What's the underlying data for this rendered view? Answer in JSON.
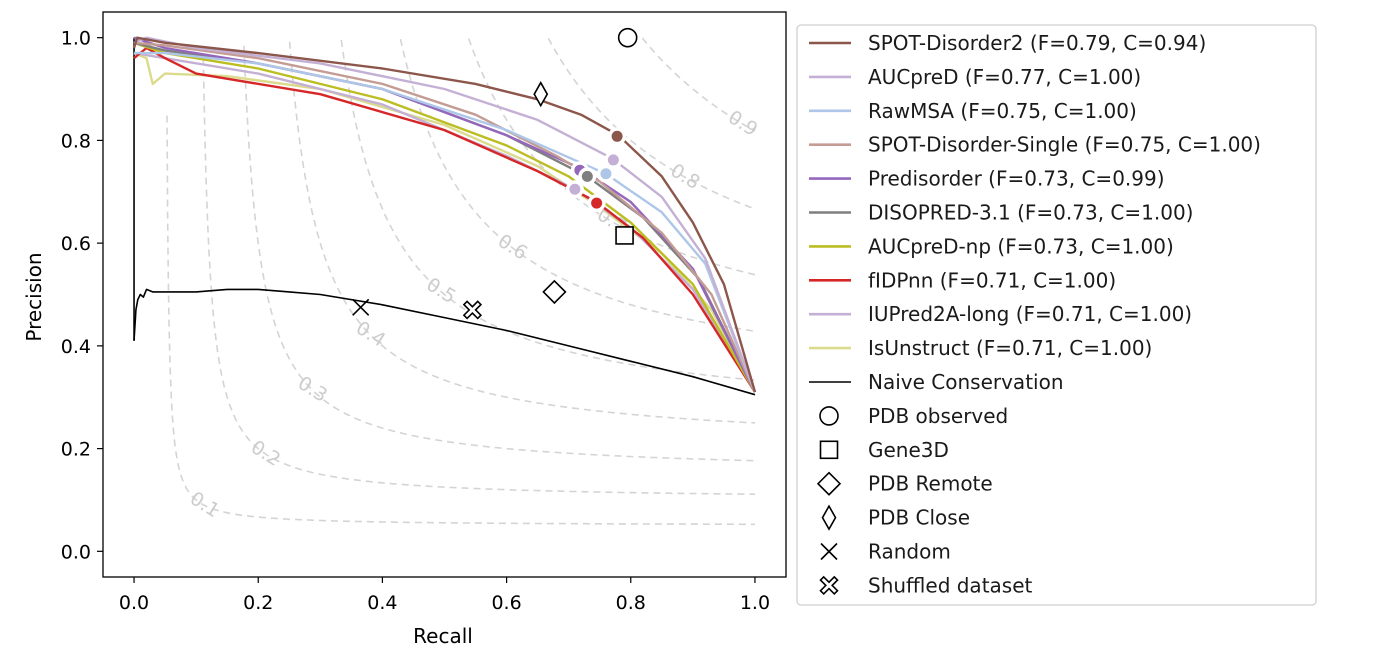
{
  "chart_data": {
    "type": "line",
    "title": "",
    "xlabel": "Recall",
    "ylabel": "Precision",
    "xlim": [
      -0.05,
      1.05
    ],
    "ylim": [
      -0.05,
      1.05
    ],
    "xticks": [
      {
        "value": 0.0,
        "label": "0.0"
      },
      {
        "value": 0.2,
        "label": "0.2"
      },
      {
        "value": 0.4,
        "label": "0.4"
      },
      {
        "value": 0.6,
        "label": "0.6"
      },
      {
        "value": 0.8,
        "label": "0.8"
      },
      {
        "value": 1.0,
        "label": "1.0"
      }
    ],
    "yticks": [
      {
        "value": 0.0,
        "label": "0.0"
      },
      {
        "value": 0.2,
        "label": "0.2"
      },
      {
        "value": 0.4,
        "label": "0.4"
      },
      {
        "value": 0.6,
        "label": "0.6"
      },
      {
        "value": 0.8,
        "label": "0.8"
      },
      {
        "value": 1.0,
        "label": "1.0"
      }
    ],
    "iso_f_contours": [
      {
        "f": 0.1,
        "label": "0.1",
        "label_at": [
          0.1,
          0.1
        ]
      },
      {
        "f": 0.2,
        "label": "0.2",
        "label_at": [
          0.2,
          0.2
        ]
      },
      {
        "f": 0.3,
        "label": "0.3",
        "label_at": [
          0.3,
          0.3
        ]
      },
      {
        "f": 0.4,
        "label": "0.4",
        "label_at": [
          0.4,
          0.4
        ]
      },
      {
        "f": 0.5,
        "label": "0.5",
        "label_at": [
          0.5,
          0.5
        ]
      },
      {
        "f": 0.6,
        "label": "0.6",
        "label_at": [
          0.6,
          0.6
        ]
      },
      {
        "f": 0.7,
        "label": "0.7",
        "label_at": [
          0.7,
          0.7
        ]
      },
      {
        "f": 0.8,
        "label": "0.8",
        "label_at": [
          0.8,
          0.8
        ]
      },
      {
        "f": 0.9,
        "label": "0.9",
        "label_at": [
          0.9,
          0.9
        ]
      }
    ],
    "series": [
      {
        "name": "SPOT-Disorder2 (F=0.79, C=0.94)",
        "color": "#8c564b",
        "points": [
          [
            0,
            0.98
          ],
          [
            0.005,
            1.0
          ],
          [
            0.05,
            0.99
          ],
          [
            0.2,
            0.97
          ],
          [
            0.4,
            0.94
          ],
          [
            0.55,
            0.91
          ],
          [
            0.65,
            0.88
          ],
          [
            0.72,
            0.85
          ],
          [
            0.78,
            0.81
          ],
          [
            0.85,
            0.73
          ],
          [
            0.9,
            0.64
          ],
          [
            0.95,
            0.52
          ],
          [
            1.0,
            0.31
          ]
        ],
        "marker": [
          0.778,
          0.808
        ]
      },
      {
        "name": "AUCpreD (F=0.77, C=1.00)",
        "color": "#c5b0d5",
        "points": [
          [
            0,
            0.99
          ],
          [
            0.02,
            1.0
          ],
          [
            0.1,
            0.98
          ],
          [
            0.3,
            0.95
          ],
          [
            0.5,
            0.9
          ],
          [
            0.65,
            0.84
          ],
          [
            0.77,
            0.765
          ],
          [
            0.85,
            0.69
          ],
          [
            0.92,
            0.57
          ],
          [
            1.0,
            0.31
          ]
        ],
        "marker": [
          0.772,
          0.762
        ]
      },
      {
        "name": "RawMSA (F=0.75, C=1.00)",
        "color": "#aec7e8",
        "points": [
          [
            0,
            0.97
          ],
          [
            0.05,
            0.97
          ],
          [
            0.2,
            0.95
          ],
          [
            0.4,
            0.9
          ],
          [
            0.6,
            0.82
          ],
          [
            0.76,
            0.735
          ],
          [
            0.85,
            0.66
          ],
          [
            0.92,
            0.56
          ],
          [
            1.0,
            0.31
          ]
        ],
        "marker": [
          0.76,
          0.735
        ]
      },
      {
        "name": "SPOT-Disorder-Single (F=0.75, C=1.00)",
        "color": "#c49c94",
        "points": [
          [
            0,
            0.99
          ],
          [
            0.05,
            0.985
          ],
          [
            0.2,
            0.96
          ],
          [
            0.4,
            0.91
          ],
          [
            0.55,
            0.85
          ],
          [
            0.68,
            0.77
          ],
          [
            0.75,
            0.72
          ],
          [
            0.85,
            0.62
          ],
          [
            0.93,
            0.5
          ],
          [
            1.0,
            0.31
          ]
        ],
        "marker": null
      },
      {
        "name": "Predisorder (F=0.73, C=0.99)",
        "color": "#9467bd",
        "points": [
          [
            0,
            1.0
          ],
          [
            0.05,
            0.98
          ],
          [
            0.2,
            0.95
          ],
          [
            0.4,
            0.9
          ],
          [
            0.6,
            0.81
          ],
          [
            0.72,
            0.745
          ],
          [
            0.8,
            0.68
          ],
          [
            0.9,
            0.55
          ],
          [
            1.0,
            0.31
          ]
        ],
        "marker": [
          0.718,
          0.742
        ]
      },
      {
        "name": "DISOPRED-3.1 (F=0.73, C=1.00)",
        "color": "#7f7f7f",
        "points": [
          [
            0,
            0.99
          ],
          [
            0.05,
            0.975
          ],
          [
            0.2,
            0.95
          ],
          [
            0.4,
            0.9
          ],
          [
            0.6,
            0.81
          ],
          [
            0.73,
            0.73
          ],
          [
            0.82,
            0.65
          ],
          [
            0.91,
            0.53
          ],
          [
            1.0,
            0.31
          ]
        ],
        "marker": [
          0.73,
          0.73
        ]
      },
      {
        "name": "AUCpreD-np (F=0.73, C=1.00)",
        "color": "#bcbd22",
        "points": [
          [
            0,
            0.99
          ],
          [
            0.05,
            0.97
          ],
          [
            0.2,
            0.94
          ],
          [
            0.4,
            0.88
          ],
          [
            0.6,
            0.79
          ],
          [
            0.7,
            0.73
          ],
          [
            0.8,
            0.64
          ],
          [
            0.9,
            0.52
          ],
          [
            1.0,
            0.31
          ]
        ],
        "marker": null
      },
      {
        "name": "fIDPnn (F=0.71, C=1.00)",
        "color": "#d62728",
        "points": [
          [
            0,
            0.96
          ],
          [
            0.02,
            0.98
          ],
          [
            0.05,
            0.96
          ],
          [
            0.1,
            0.93
          ],
          [
            0.3,
            0.89
          ],
          [
            0.5,
            0.82
          ],
          [
            0.65,
            0.74
          ],
          [
            0.745,
            0.68
          ],
          [
            0.82,
            0.61
          ],
          [
            0.9,
            0.5
          ],
          [
            1.0,
            0.31
          ]
        ],
        "marker": [
          0.745,
          0.678
        ]
      },
      {
        "name": "IUPred2A-long (F=0.71, C=1.00)",
        "color": "#c5b0d5",
        "points": [
          [
            0,
            0.97
          ],
          [
            0.05,
            0.96
          ],
          [
            0.2,
            0.93
          ],
          [
            0.4,
            0.87
          ],
          [
            0.6,
            0.77
          ],
          [
            0.71,
            0.705
          ],
          [
            0.8,
            0.63
          ],
          [
            0.9,
            0.51
          ],
          [
            1.0,
            0.31
          ]
        ],
        "marker": [
          0.71,
          0.705
        ]
      },
      {
        "name": "IsUnstruct (F=0.71, C=1.00)",
        "color": "#dbdb8d",
        "points": [
          [
            0,
            0.97
          ],
          [
            0.02,
            0.96
          ],
          [
            0.03,
            0.91
          ],
          [
            0.05,
            0.93
          ],
          [
            0.15,
            0.925
          ],
          [
            0.3,
            0.9
          ],
          [
            0.5,
            0.83
          ],
          [
            0.65,
            0.75
          ],
          [
            0.75,
            0.67
          ],
          [
            0.85,
            0.58
          ],
          [
            0.93,
            0.47
          ],
          [
            1.0,
            0.31
          ]
        ],
        "marker": null
      },
      {
        "name": "Naive Conservation",
        "color": "#000000",
        "points": [
          [
            0,
            0.41
          ],
          [
            0.002,
            0.45
          ],
          [
            0.003,
            0.47
          ],
          [
            0.006,
            0.49
          ],
          [
            0.01,
            0.5
          ],
          [
            0.015,
            0.495
          ],
          [
            0.02,
            0.51
          ],
          [
            0.03,
            0.505
          ],
          [
            0.05,
            0.505
          ],
          [
            0.1,
            0.505
          ],
          [
            0.15,
            0.51
          ],
          [
            0.2,
            0.51
          ],
          [
            0.25,
            0.505
          ],
          [
            0.3,
            0.5
          ],
          [
            0.4,
            0.48
          ],
          [
            0.5,
            0.455
          ],
          [
            0.6,
            0.43
          ],
          [
            0.7,
            0.4
          ],
          [
            0.8,
            0.37
          ],
          [
            0.9,
            0.34
          ],
          [
            1.0,
            0.305
          ]
        ],
        "vertical_segment": [
          [
            0,
            0.41
          ],
          [
            0,
            1.0
          ]
        ],
        "marker": null
      }
    ],
    "point_markers": [
      {
        "name": "PDB observed",
        "shape": "circle",
        "x": 0.795,
        "y": 1.0
      },
      {
        "name": "Gene3D",
        "shape": "square",
        "x": 0.79,
        "y": 0.615
      },
      {
        "name": "PDB Remote",
        "shape": "diamond",
        "x": 0.677,
        "y": 0.505
      },
      {
        "name": "PDB Close",
        "shape": "thin_diamond",
        "x": 0.655,
        "y": 0.89
      },
      {
        "name": "Random",
        "shape": "x",
        "x": 0.365,
        "y": 0.475
      },
      {
        "name": "Shuffled dataset",
        "shape": "X",
        "x": 0.545,
        "y": 0.47
      }
    ],
    "legend_position": "right"
  }
}
